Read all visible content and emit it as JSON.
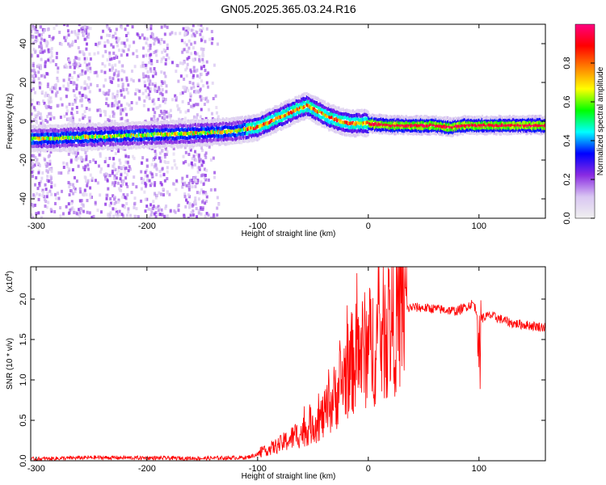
{
  "title": "GN05.2025.365.03.24.R16",
  "chart_data": [
    {
      "type": "heatmap",
      "name": "spectrogram",
      "xlabel": "Height of straight line (km)",
      "ylabel": "Frequency (Hz)",
      "xlim": [
        -305,
        160
      ],
      "ylim": [
        -50,
        50
      ],
      "x_ticks": [
        -300,
        -200,
        -100,
        0,
        100
      ],
      "y_ticks": [
        -40,
        -20,
        0,
        20,
        40
      ],
      "colorbar": {
        "label": "Normalized spectral amplitude",
        "range": [
          0.0,
          1.0
        ],
        "ticks": [
          0.0,
          0.2,
          0.4,
          0.6,
          0.8
        ],
        "colormap": [
          "#f0f0f0",
          "#d9c6f2",
          "#8a2be2",
          "#0000ff",
          "#00ffff",
          "#00ff00",
          "#ffff00",
          "#ff8000",
          "#ff0000",
          "#ff0080"
        ]
      },
      "ridge": {
        "x": [
          -300,
          -250,
          -200,
          -150,
          -120,
          -100,
          -80,
          -65,
          -55,
          -45,
          -35,
          -25,
          -15,
          0,
          20,
          60,
          75,
          85,
          100,
          160
        ],
        "y": [
          -9,
          -8,
          -7,
          -6,
          -5,
          -3,
          2,
          6,
          8,
          5,
          2,
          0,
          -1,
          -1,
          -2,
          -2,
          -3,
          -2,
          -2,
          -2
        ]
      },
      "grid": false
    },
    {
      "type": "line",
      "name": "snr",
      "xlabel": "Height of straight line (km)",
      "ylabel": "SNR (10 * v/v)",
      "scale_label": "(x10",
      "scale_exp": "4",
      "scale_close": ")",
      "color": "#ff0000",
      "xlim": [
        -305,
        160
      ],
      "ylim": [
        0,
        24000
      ],
      "x_ticks": [
        -300,
        -200,
        -100,
        0,
        100
      ],
      "y_ticks": [
        0,
        5000,
        10000,
        15000,
        20000
      ],
      "y_tick_labels": [
        "0.0",
        "0.5",
        "1.0",
        "1.5",
        "2.0"
      ],
      "envelope": {
        "x": [
          -305,
          -250,
          -150,
          -110,
          -100,
          -80,
          -60,
          -40,
          -30,
          -20,
          -10,
          0,
          10,
          20,
          30,
          40,
          60,
          80,
          95,
          100,
          110,
          130,
          160
        ],
        "y": [
          200,
          400,
          300,
          400,
          800,
          2000,
          3500,
          5500,
          8000,
          11000,
          13000,
          14000,
          15000,
          17000,
          18500,
          19000,
          18800,
          18500,
          19500,
          17500,
          18000,
          17000,
          16500
        ]
      },
      "grid": false
    }
  ]
}
